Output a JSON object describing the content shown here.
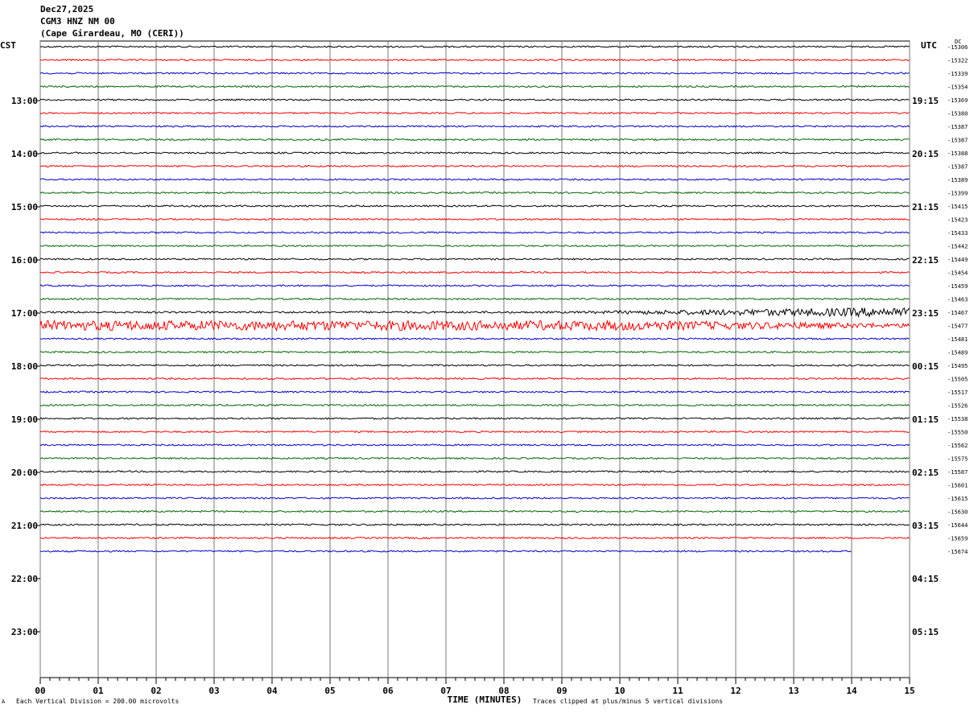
{
  "header": {
    "date": "Dec27,2025",
    "station": "CGM3 HNZ NM 00",
    "location": "(Cape Girardeau, MO (CERI))"
  },
  "left_zone": "CST",
  "right_zone": "UTC",
  "dc_label": "DC",
  "footer": {
    "division_note": "Each Vertical Division =  200.00 microvolts",
    "clip_note": "Traces clipped at plus/minus 5 vertical divisions",
    "corner_mark": "A"
  },
  "chart_data": {
    "type": "line",
    "title": "",
    "xlabel": "TIME (MINUTES)",
    "xlim": [
      0,
      15
    ],
    "x_ticks": [
      "00",
      "01",
      "02",
      "03",
      "04",
      "05",
      "06",
      "07",
      "08",
      "09",
      "10",
      "11",
      "12",
      "13",
      "14",
      "15"
    ],
    "left_hour_labels": [
      "13:00",
      "14:00",
      "15:00",
      "16:00",
      "17:00",
      "18:00",
      "19:00",
      "20:00",
      "21:00",
      "22:00",
      "23:00"
    ],
    "right_hour_labels": [
      "19:15",
      "20:15",
      "21:15",
      "22:15",
      "23:15",
      "00:15",
      "01:15",
      "02:15",
      "03:15",
      "04:15",
      "05:15"
    ],
    "trace_colors": [
      "#000000",
      "#ff0000",
      "#0000cc",
      "#006600"
    ],
    "trace_dc_offsets": [
      -15306,
      -15322,
      -15339,
      -15354,
      -15369,
      -15380,
      -15387,
      -15387,
      -15388,
      -15387,
      -15389,
      -15399,
      -15415,
      -15423,
      -15433,
      -15442,
      -15449,
      -15454,
      -15459,
      -15463,
      -15467,
      -15477,
      -15481,
      -15489,
      -15495,
      -15505,
      -15517,
      -15526,
      -15538,
      -15550,
      -15562,
      -15575,
      -15587,
      -15601,
      -15615,
      -15630,
      -15644,
      -15659,
      -15674
    ],
    "last_trace_end_minute": 14
  }
}
